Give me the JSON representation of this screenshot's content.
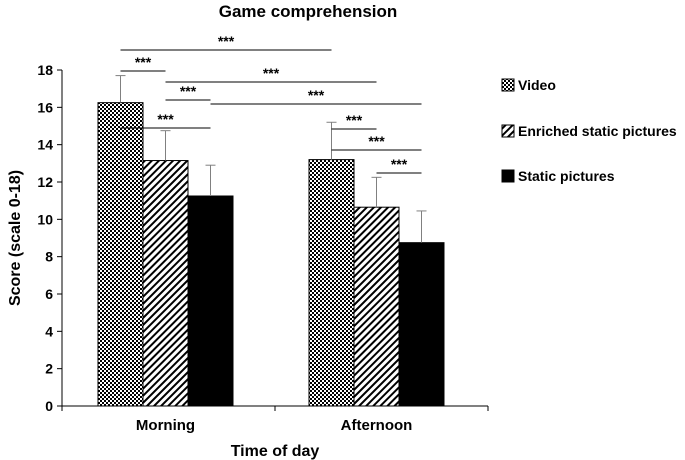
{
  "chart_data": {
    "type": "bar",
    "title": "Game comprehension",
    "xlabel": "Time of day",
    "ylabel": "Score (scale 0-18)",
    "categories": [
      "Morning",
      "Afternoon"
    ],
    "ylim": [
      0,
      18
    ],
    "yticks": [
      0,
      2,
      4,
      6,
      8,
      10,
      12,
      14,
      16,
      18
    ],
    "legend_position": "right",
    "grid": false,
    "series": [
      {
        "name": "Video",
        "values": [
          16.25,
          13.2
        ],
        "errors": [
          1.45,
          2.0
        ],
        "pattern": "checkered"
      },
      {
        "name": "Enriched static pictures",
        "values": [
          13.15,
          10.65
        ],
        "errors": [
          1.6,
          1.6
        ],
        "pattern": "diagonal-hatch"
      },
      {
        "name": "Static pictures",
        "values": [
          11.25,
          8.75
        ],
        "errors": [
          1.65,
          1.7
        ],
        "pattern": "solid"
      }
    ],
    "significance": [
      {
        "from": [
          0,
          0
        ],
        "to": [
          1,
          0
        ],
        "label": "***"
      },
      {
        "from": [
          0,
          0
        ],
        "to": [
          0,
          1
        ],
        "label": "***"
      },
      {
        "from": [
          0,
          1
        ],
        "to": [
          0,
          2
        ],
        "label": "***"
      },
      {
        "from": [
          0,
          0
        ],
        "to": [
          0,
          2
        ],
        "label": "***"
      },
      {
        "from": [
          0,
          1
        ],
        "to": [
          1,
          1
        ],
        "label": "***"
      },
      {
        "from": [
          0,
          2
        ],
        "to": [
          1,
          2
        ],
        "label": "***"
      },
      {
        "from": [
          1,
          0
        ],
        "to": [
          1,
          1
        ],
        "label": "***"
      },
      {
        "from": [
          1,
          0
        ],
        "to": [
          1,
          2
        ],
        "label": "***"
      },
      {
        "from": [
          1,
          1
        ],
        "to": [
          1,
          2
        ],
        "label": "***"
      }
    ]
  }
}
